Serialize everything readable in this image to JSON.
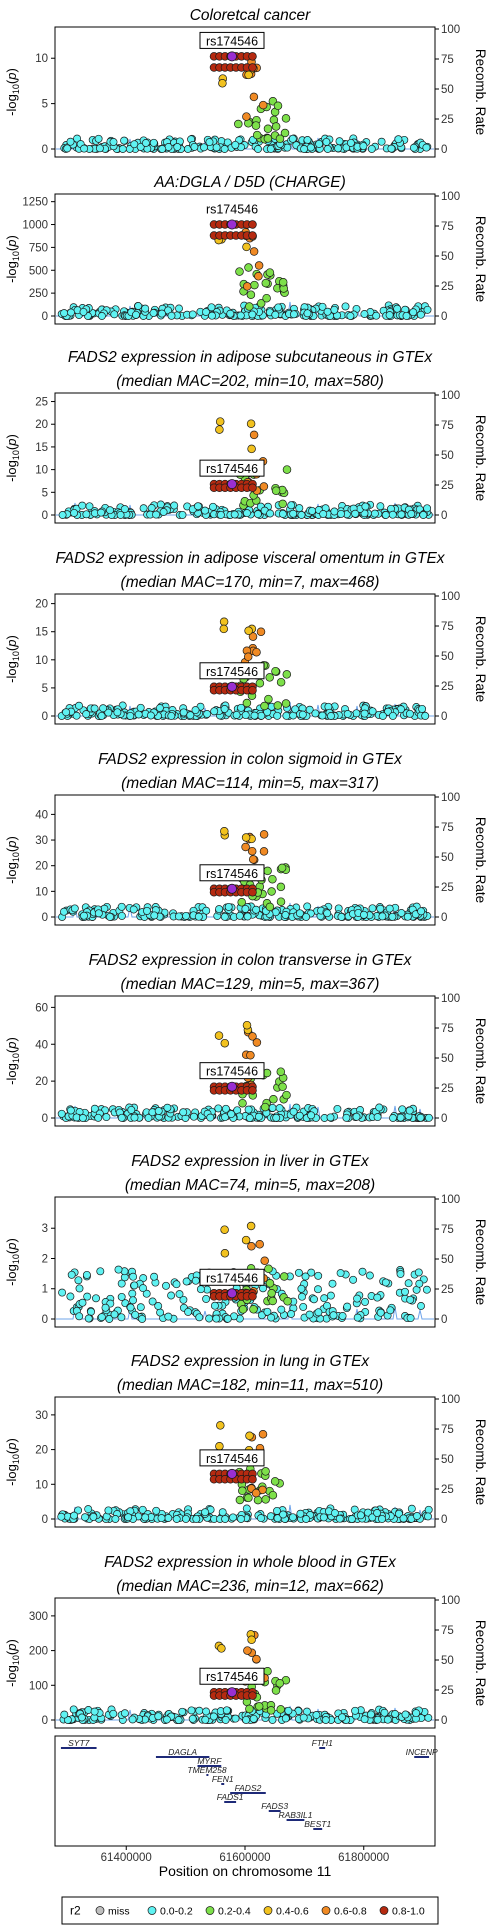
{
  "figure": {
    "xlabel": "Position on chromosome 11",
    "x_ticks": [
      61400000,
      61600000,
      61800000
    ],
    "x_tick_labels": [
      "61400000",
      "61600000",
      "61800000"
    ],
    "xlim": [
      61280000,
      61920000
    ]
  },
  "legend": {
    "title": "r2",
    "entries": [
      {
        "label": "miss",
        "color": "#bfbfbf"
      },
      {
        "label": "0.0-0.2",
        "color": "#5ff2f2"
      },
      {
        "label": "0.2-0.4",
        "color": "#7de04a"
      },
      {
        "label": "0.4-0.6",
        "color": "#f2c21f"
      },
      {
        "label": "0.6-0.8",
        "color": "#f08a24"
      },
      {
        "label": "0.8-1.0",
        "color": "#b52a10"
      }
    ]
  },
  "colors": {
    "lead_snp": "#9a2fd1",
    "recomb_line": "#6fa4ea",
    "gene": "#1e2a78"
  },
  "chart_data": [
    {
      "type": "scatter",
      "title_lines": [
        "Coloretcal cancer"
      ],
      "ylabel": "-log10(p)",
      "yticks": [
        0,
        5,
        10
      ],
      "ymax": 13,
      "lead_snp": "rs174546",
      "lead_value": 10.2,
      "recomb_label": "Recomb. Rate",
      "recomb_ticks": [
        0,
        25,
        50,
        75,
        100
      ]
    },
    {
      "type": "scatter",
      "title_lines": [
        "AA:DGLA / D5D (CHARGE)"
      ],
      "ylabel": "-log10(p)",
      "yticks": [
        0,
        250,
        500,
        750,
        1000,
        1250
      ],
      "ymax": 1290,
      "lead_snp": "rs174546",
      "lead_value": 1000,
      "recomb_label": "Recomb. Rate",
      "recomb_ticks": [
        0,
        25,
        50,
        75,
        100
      ]
    },
    {
      "type": "scatter",
      "title_lines": [
        "FADS2 expression in adipose subcutaneous in GTEx",
        "(median MAC=202, min=10, max=580)"
      ],
      "ylabel": "-log10(p)",
      "yticks": [
        0,
        5,
        10,
        15,
        20,
        25
      ],
      "ymax": 26,
      "lead_snp": "rs174546",
      "lead_value": 6.8,
      "recomb_label": "Recomb. Rate",
      "recomb_ticks": [
        0,
        25,
        50,
        75,
        100
      ]
    },
    {
      "type": "scatter",
      "title_lines": [
        "FADS2 expression in adipose visceral omentum in GTEx",
        "(median MAC=170, min=7, max=468)"
      ],
      "ylabel": "-log10(p)",
      "yticks": [
        0,
        5,
        10,
        15,
        20
      ],
      "ymax": 21,
      "lead_snp": "rs174546",
      "lead_value": 5.2,
      "recomb_label": "Recomb. Rate",
      "recomb_ticks": [
        0,
        25,
        50,
        75,
        100
      ]
    },
    {
      "type": "scatter",
      "title_lines": [
        "FADS2 expression in colon sigmoid in GTEx",
        "(median MAC=114, min=5, max=317)"
      ],
      "ylabel": "-log10(p)",
      "yticks": [
        0,
        10,
        20,
        30,
        40
      ],
      "ymax": 46,
      "lead_snp": "rs174546",
      "lead_value": 11,
      "recomb_label": "Recomb. Rate",
      "recomb_ticks": [
        0,
        25,
        50,
        75,
        100
      ]
    },
    {
      "type": "scatter",
      "title_lines": [
        "FADS2 expression in colon transverse in GTEx",
        "(median MAC=129, min=5, max=367)"
      ],
      "ylabel": "-log10(p)",
      "yticks": [
        0,
        20,
        40,
        60
      ],
      "ymax": 64,
      "lead_snp": "rs174546",
      "lead_value": 17,
      "recomb_label": "Recomb. Rate",
      "recomb_ticks": [
        0,
        25,
        50,
        75,
        100
      ]
    },
    {
      "type": "scatter",
      "title_lines": [
        "FADS2 expression in liver in GTEx",
        "(median MAC=74, min=5, max=208)"
      ],
      "ylabel": "-log10(p)",
      "yticks": [
        0,
        1,
        2,
        3
      ],
      "ymax": 3.9,
      "lead_snp": "rs174546",
      "lead_value": 0.85,
      "recomb_label": "Recomb. Rate",
      "recomb_ticks": [
        0,
        25,
        50,
        75,
        100
      ]
    },
    {
      "type": "scatter",
      "title_lines": [
        "FADS2 expression in lung in GTEx",
        "(median MAC=182, min=11, max=510)"
      ],
      "ylabel": "-log10(p)",
      "yticks": [
        0,
        10,
        20,
        30
      ],
      "ymax": 34,
      "lead_snp": "rs174546",
      "lead_value": 13,
      "recomb_label": "Recomb. Rate",
      "recomb_ticks": [
        0,
        25,
        50,
        75,
        100
      ]
    },
    {
      "type": "scatter",
      "title_lines": [
        "FADS2 expression in whole blood in GTEx",
        "(median MAC=236, min=12, max=662)"
      ],
      "ylabel": "-log10(p)",
      "yticks": [
        0,
        100,
        200,
        300
      ],
      "ymax": 340,
      "lead_snp": "rs174546",
      "lead_value": 80,
      "recomb_label": "Recomb. Rate",
      "recomb_ticks": [
        0,
        25,
        50,
        75,
        100
      ]
    }
  ],
  "genes": [
    {
      "name": "SYT7",
      "start": 61290000,
      "end": 61350000,
      "row": 0
    },
    {
      "name": "FTH1",
      "start": 61725000,
      "end": 61735000,
      "row": 0
    },
    {
      "name": "INCENP",
      "start": 61885000,
      "end": 61910000,
      "row": 1
    },
    {
      "name": "DAGLA",
      "start": 61450000,
      "end": 61540000,
      "row": 1
    },
    {
      "name": "MYRF",
      "start": 61520000,
      "end": 61560000,
      "row": 2
    },
    {
      "name": "TMEM258",
      "start": 61535000,
      "end": 61537000,
      "row": 3
    },
    {
      "name": "FEN1",
      "start": 61560000,
      "end": 61565000,
      "row": 4
    },
    {
      "name": "FADS2",
      "start": 61575000,
      "end": 61635000,
      "row": 5
    },
    {
      "name": "FADS1",
      "start": 61565000,
      "end": 61585000,
      "row": 6
    },
    {
      "name": "FADS3",
      "start": 61640000,
      "end": 61660000,
      "row": 7
    },
    {
      "name": "RAB3IL1",
      "start": 61670000,
      "end": 61700000,
      "row": 8
    },
    {
      "name": "BEST1",
      "start": 61715000,
      "end": 61730000,
      "row": 9
    }
  ]
}
